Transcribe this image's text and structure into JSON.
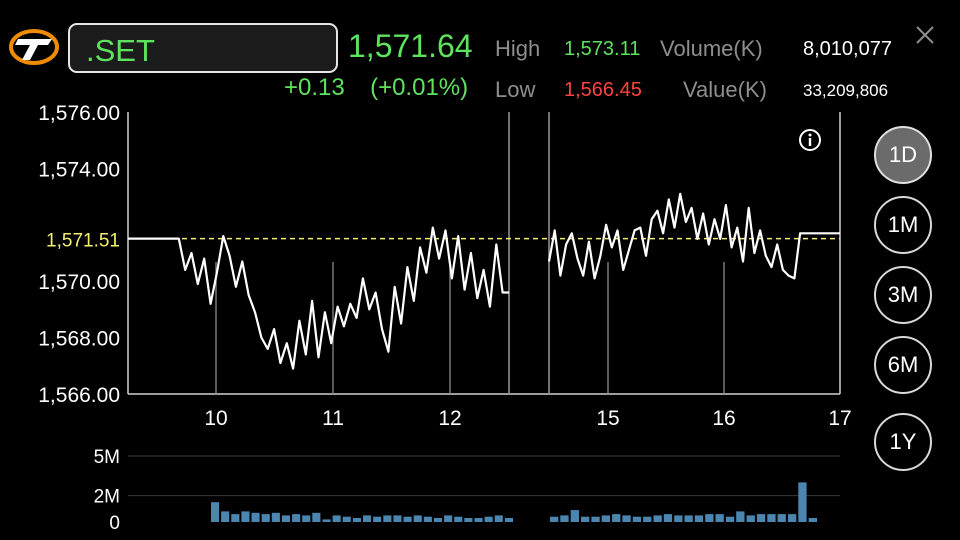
{
  "symbol": ".SET",
  "price": "1,571.64",
  "change": "+0.13",
  "change_pct": "(+0.01%)",
  "stats": {
    "high_label": "High",
    "high_value": "1,573.11",
    "low_label": "Low",
    "low_value": "1,566.45",
    "volume_label": "Volume(K)",
    "volume_value": "8,010,077",
    "value_label": "Value(K)",
    "value_value": "33,209,806"
  },
  "timeframes": [
    "1D",
    "1M",
    "3M",
    "6M",
    "1Y"
  ],
  "active_timeframe": "1D",
  "colors": {
    "up": "#5ee35e",
    "down": "#ff4040",
    "reference": "#f4ef6c",
    "volume": "#4a86b0"
  },
  "icons": {
    "logo": "settrade-logo",
    "close": "close-icon",
    "info": "info-icon"
  },
  "chart_data": {
    "type": "line",
    "title": "",
    "price_ticks": [
      "1,576.00",
      "1,574.00",
      "1,570.00",
      "1,568.00",
      "1,566.00"
    ],
    "price_tick_values": [
      1576,
      1574,
      1570,
      1568,
      1566
    ],
    "reference_label": "1,571.51",
    "reference_value": 1571.51,
    "ylim": [
      1566,
      1576
    ],
    "x_ticks": [
      "10",
      "11",
      "12",
      "15",
      "16",
      "17"
    ],
    "sessions": [
      {
        "name": "morning",
        "values": [
          1571.51,
          1571.51,
          1571.51,
          1571.51,
          1571.51,
          1571.51,
          1571.51,
          1571.51,
          1571.51,
          1570.4,
          1571.0,
          1569.9,
          1570.8,
          1569.2,
          1570.3,
          1571.6,
          1570.9,
          1569.8,
          1570.7,
          1569.5,
          1568.9,
          1568.0,
          1567.6,
          1568.3,
          1567.1,
          1567.8,
          1566.9,
          1568.6,
          1567.4,
          1569.3,
          1567.3,
          1568.9,
          1567.8,
          1569.1,
          1568.4,
          1569.2,
          1568.7,
          1570.1,
          1569.0,
          1569.6,
          1568.3,
          1567.5,
          1569.8,
          1568.5,
          1570.5,
          1569.3,
          1571.2,
          1570.3,
          1571.9,
          1570.8,
          1571.8,
          1570.1,
          1571.6,
          1569.7,
          1571.0,
          1569.4,
          1570.4,
          1569.1,
          1571.3,
          1569.6,
          1569.6
        ]
      },
      {
        "name": "afternoon",
        "values": [
          1570.7,
          1571.8,
          1570.2,
          1571.3,
          1571.7,
          1570.8,
          1570.2,
          1571.4,
          1570.1,
          1570.9,
          1572.0,
          1571.2,
          1571.8,
          1570.4,
          1571.1,
          1571.8,
          1571.9,
          1570.9,
          1572.2,
          1572.5,
          1571.7,
          1572.9,
          1571.9,
          1573.1,
          1572.1,
          1572.6,
          1571.5,
          1572.4,
          1571.3,
          1572.2,
          1571.5,
          1572.7,
          1571.2,
          1571.9,
          1570.7,
          1572.6,
          1571.0,
          1571.8,
          1570.9,
          1570.5,
          1571.3,
          1570.4,
          1570.2,
          1570.1,
          1571.7,
          1571.7,
          1571.7,
          1571.7,
          1571.7,
          1571.7,
          1571.7,
          1571.7
        ]
      }
    ],
    "volume": {
      "ticks": [
        "5M",
        "2M",
        "0"
      ],
      "tick_values": [
        5,
        2,
        0
      ],
      "unit": "M",
      "sessions": [
        {
          "name": "morning",
          "values": [
            1.5,
            0.8,
            0.6,
            0.8,
            0.7,
            0.6,
            0.7,
            0.5,
            0.6,
            0.5,
            0.7,
            0.2,
            0.5,
            0.4,
            0.3,
            0.5,
            0.4,
            0.5,
            0.5,
            0.4,
            0.5,
            0.4,
            0.3,
            0.5,
            0.4,
            0.3,
            0.3,
            0.4,
            0.5,
            0.3
          ]
        },
        {
          "name": "afternoon",
          "values": [
            0.4,
            0.5,
            0.9,
            0.4,
            0.4,
            0.5,
            0.6,
            0.5,
            0.4,
            0.4,
            0.5,
            0.6,
            0.5,
            0.5,
            0.5,
            0.6,
            0.6,
            0.4,
            0.8,
            0.5,
            0.6,
            0.6,
            0.6,
            0.6,
            3.0,
            0.3
          ]
        }
      ]
    }
  }
}
